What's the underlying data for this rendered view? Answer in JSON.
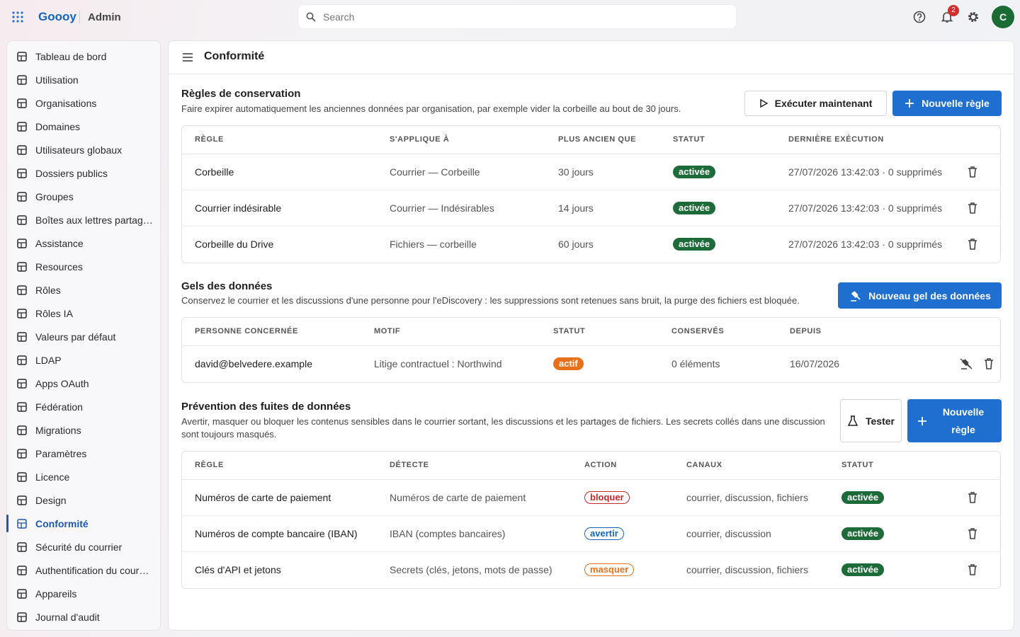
{
  "header": {
    "brand": "Goooy",
    "app": "Admin",
    "search_placeholder": "Search",
    "notification_count": "2",
    "avatar": "C"
  },
  "sidebar": {
    "items": [
      "Tableau de bord",
      "Utilisation",
      "Organisations",
      "Domaines",
      "Utilisateurs globaux",
      "Dossiers publics",
      "Groupes",
      "Boîtes aux lettres partag…",
      "Assistance",
      "Resources",
      "Rôles",
      "Rôles IA",
      "Valeurs par défaut",
      "LDAP",
      "Apps OAuth",
      "Fédération",
      "Migrations",
      "Paramètres",
      "Licence",
      "Design",
      "Conformité",
      "Sécurité du courrier",
      "Authentification du cour…",
      "Appareils",
      "Journal d'audit"
    ]
  },
  "page": {
    "title": "Conformité"
  },
  "retention": {
    "title": "Règles de conservation",
    "description": "Faire expirer automatiquement les anciennes données par organisation, par exemple vider la corbeille au bout de 30 jours.",
    "buttons": [
      "Exécuter maintenant",
      "Nouvelle règle"
    ],
    "table": {
      "columns": [
        "RÈGLE",
        "S'APPLIQUE À",
        "PLUS ANCIEN QUE",
        "STATUT",
        "DERNIÈRE EXÉCUTION"
      ],
      "rows": [
        [
          "Corbeille",
          "Courrier — Corbeille",
          "30 jours",
          {
            "text": "activée",
            "color": "#ffffff",
            "background": "#1e6b3a"
          },
          "27/07/2026 13:42:03 · 0 supprimés"
        ],
        [
          "Courrier indésirable",
          "Courrier — Indésirables",
          "14 jours",
          {
            "text": "activée",
            "color": "#ffffff",
            "background": "#1e6b3a"
          },
          "27/07/2026 13:42:03 · 0 supprimés"
        ],
        [
          "Corbeille du Drive",
          "Fichiers — corbeille",
          "60 jours",
          {
            "text": "activée",
            "color": "#ffffff",
            "background": "#1e6b3a"
          },
          "27/07/2026 13:42:03 · 0 supprimés"
        ]
      ]
    }
  },
  "holds": {
    "title": "Gels des données",
    "description": "Conservez le courrier et les discussions d'une personne pour l'eDiscovery : les suppressions sont retenues sans bruit, la purge des fichiers est bloquée.",
    "buttons": [
      "Nouveau gel des données"
    ],
    "table": {
      "columns": [
        "PERSONNE CONCERNÉE",
        "MOTIF",
        "STATUT",
        "CONSERVÉS",
        "DEPUIS"
      ],
      "rows": [
        [
          "david@belvedere.example",
          "Litige contractuel : Northwind",
          {
            "text": "actif",
            "color": "#ffffff",
            "background": "#e8701a"
          },
          "0 éléments",
          "16/07/2026"
        ]
      ]
    }
  },
  "dlp": {
    "title": "Prévention des fuites de données",
    "description": "Avertir, masquer ou bloquer les contenus sensibles dans le courrier sortant, les discussions et les partages de fichiers. Les secrets collés dans une discussion sont toujours masqués.",
    "buttons": [
      "Tester",
      "Nouvelle règle"
    ],
    "table": {
      "columns": [
        "RÈGLE",
        "DÉTECTE",
        "ACTION",
        "CANAUX",
        "STATUT"
      ],
      "rows": [
        [
          "Numéros de carte de paiement",
          "Numéros de carte de paiement",
          {
            "text": "bloquer",
            "color": "#c62828",
            "border": "#c62828"
          },
          "courrier, discussion, fichiers",
          {
            "text": "activée",
            "color": "#ffffff",
            "background": "#1e6b3a"
          }
        ],
        [
          "Numéros de compte bancaire (IBAN)",
          "IBAN (comptes bancaires)",
          {
            "text": "avertir",
            "color": "#1565c0",
            "border": "#1565c0"
          },
          "courrier, discussion",
          {
            "text": "activée",
            "color": "#ffffff",
            "background": "#1e6b3a"
          }
        ],
        [
          "Clés d'API et jetons",
          "Secrets (clés, jetons, mots de passe)",
          {
            "text": "masquer",
            "color": "#e8701a",
            "border": "#e8701a"
          },
          "courrier, discussion, fichiers",
          {
            "text": "activée",
            "color": "#ffffff",
            "background": "#1e6b3a"
          }
        ]
      ]
    }
  }
}
